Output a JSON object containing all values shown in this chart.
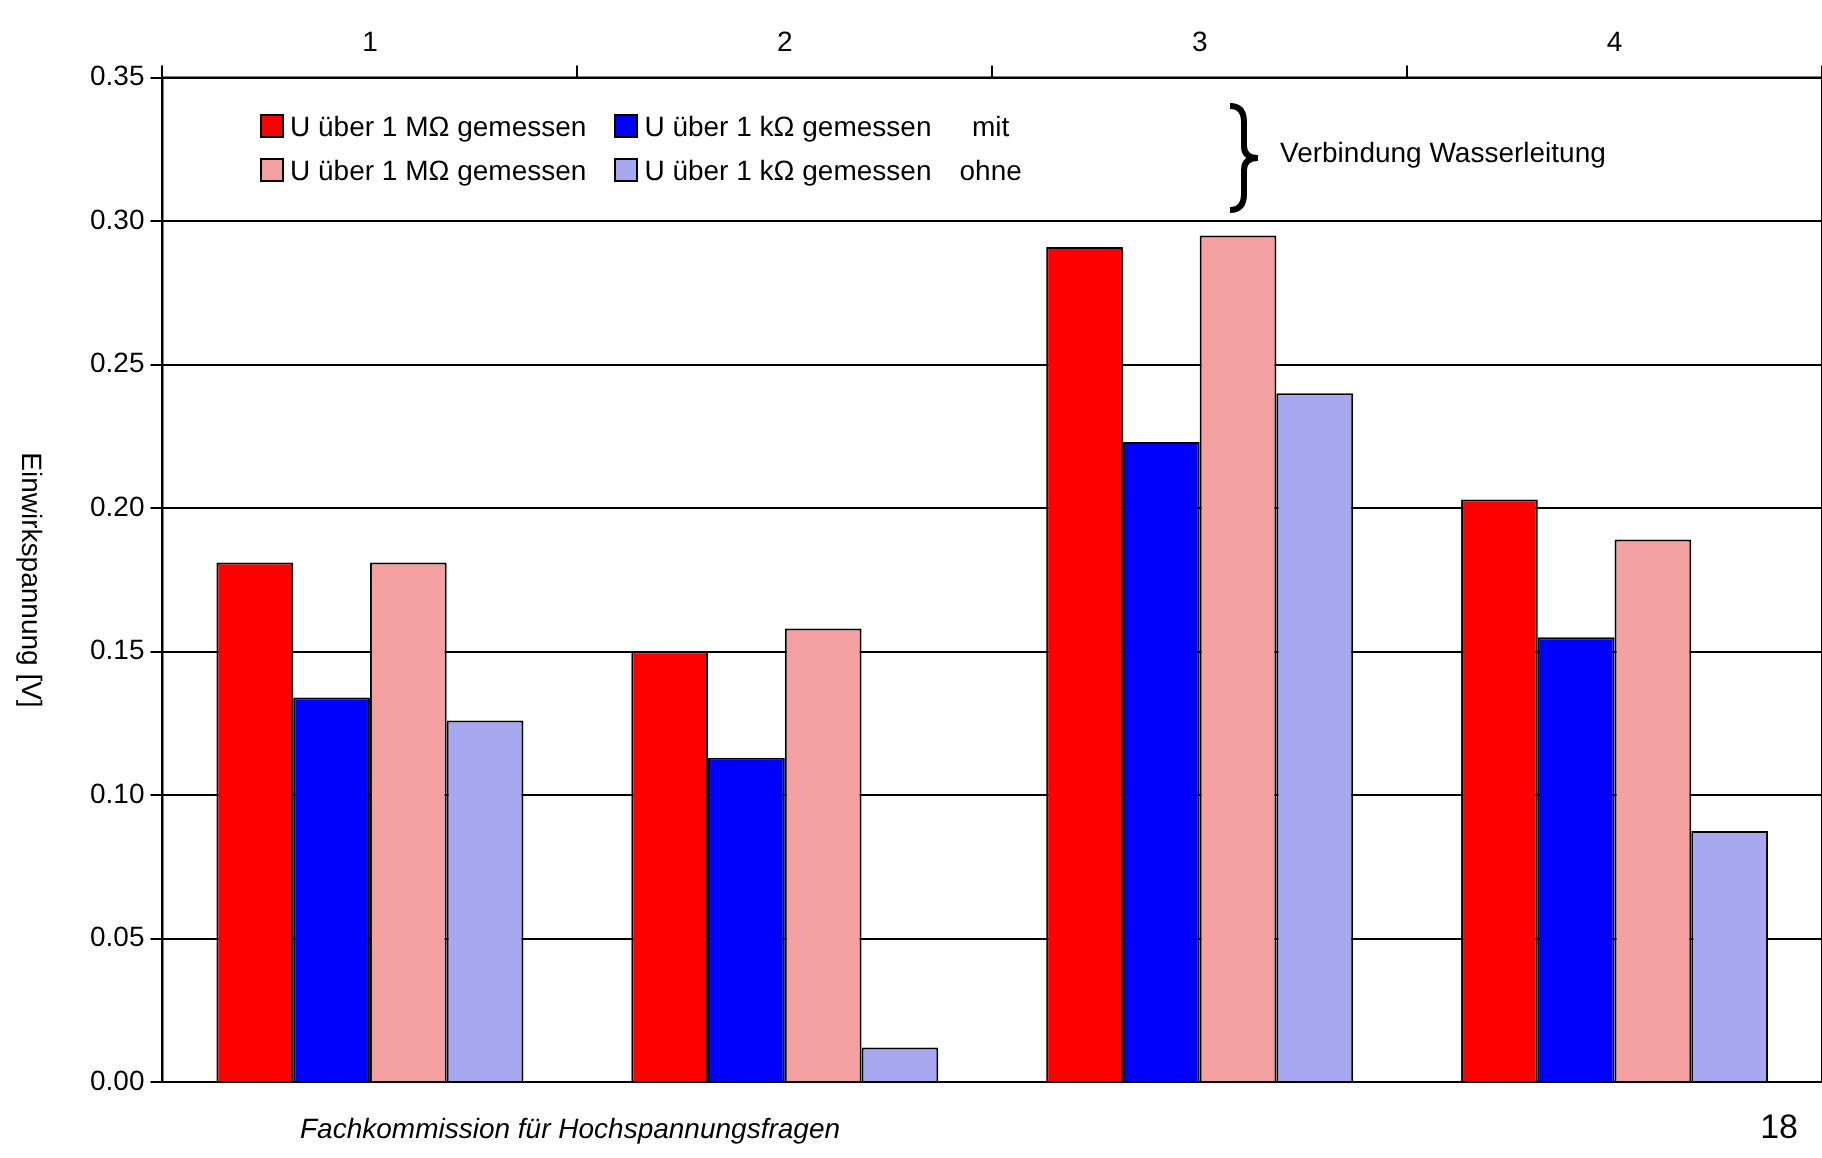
{
  "chart_data": {
    "type": "bar",
    "ylabel": "Einwirkspannung [V]",
    "categories": [
      "1",
      "2",
      "3",
      "4"
    ],
    "series": [
      {
        "name": "U über 1 MΩ gemessen",
        "color": "#ff0000",
        "values": [
          0.181,
          0.15,
          0.291,
          0.203
        ]
      },
      {
        "name": "U über 1 kΩ gemessen",
        "color": "#0000ff",
        "values": [
          0.134,
          0.113,
          0.223,
          0.155
        ]
      },
      {
        "name": "U über 1 MΩ gemessen",
        "color": "#f4a0a0",
        "values": [
          0.181,
          0.158,
          0.295,
          0.189
        ]
      },
      {
        "name": "U über 1 kΩ gemessen",
        "color": "#a8a8f0",
        "values": [
          0.126,
          0.012,
          0.24,
          0.0875
        ]
      }
    ],
    "ylim": [
      0,
      0.35
    ],
    "yticks": [
      {
        "value": 0,
        "label": "0.00"
      },
      {
        "value": 0.05,
        "label": "0.05"
      },
      {
        "value": 0.1,
        "label": "0.10"
      },
      {
        "value": 0.15,
        "label": "0.15"
      },
      {
        "value": 0.2,
        "label": "0.20"
      },
      {
        "value": 0.25,
        "label": "0.25"
      },
      {
        "value": 0.3,
        "label": "0.30"
      },
      {
        "value": 0.35,
        "label": "0.35"
      }
    ],
    "grid": "y",
    "legend": "top",
    "annotations": [
      "mit",
      "ohne",
      "Verbindung Wasserleitung",
      "Fachkommission für Hochspannungsfragen",
      "18"
    ]
  }
}
